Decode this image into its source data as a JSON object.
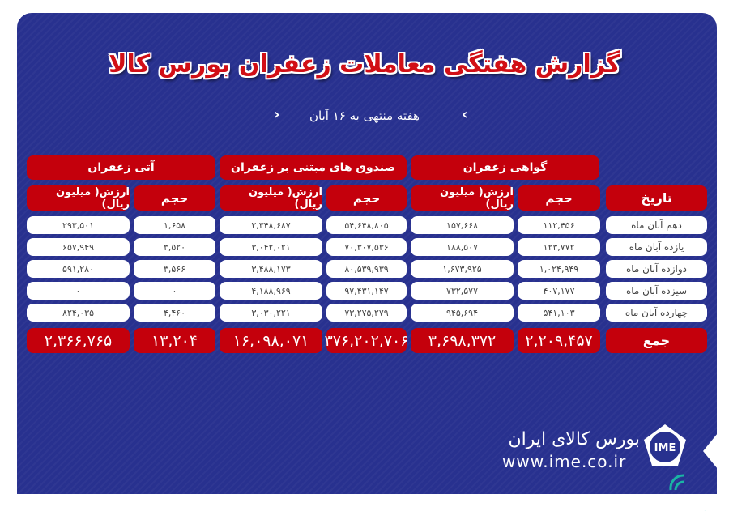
{
  "title": "گزارش هفتگی معاملات زعفران بورس کالا",
  "subtitle": "هفته منتهی به ۱۶ آبان",
  "groups": [
    "گواهی زعفران",
    "صندوق های مبتنی بر زعفران",
    "آتی زعفران"
  ],
  "date_header": "تاریخ",
  "volume_header": "حجم",
  "value_header": "ارزش( میلیون ریال)",
  "rows": [
    {
      "date": "دهم آبان ماه",
      "v": [
        "۱۱۲,۴۵۶",
        "۱۵۷,۶۶۸",
        "۵۴,۶۴۸,۸۰۵",
        "۲,۳۴۸,۶۸۷",
        "۱,۶۵۸",
        "۲۹۳,۵۰۱"
      ]
    },
    {
      "date": "یازده آبان ماه",
      "v": [
        "۱۲۳,۷۷۲",
        "۱۸۸,۵۰۷",
        "۷۰,۳۰۷,۵۳۶",
        "۳,۰۴۲,۰۲۱",
        "۳,۵۲۰",
        "۶۵۷,۹۴۹"
      ]
    },
    {
      "date": "دوازده آبان ماه",
      "v": [
        "۱,۰۲۴,۹۴۹",
        "۱,۶۷۳,۹۲۵",
        "۸۰,۵۳۹,۹۳۹",
        "۳,۴۸۸,۱۷۳",
        "۳,۵۶۶",
        "۵۹۱,۲۸۰"
      ]
    },
    {
      "date": "سیزده آبان ماه",
      "v": [
        "۴۰۷,۱۷۷",
        "۷۳۲,۵۷۷",
        "۹۷,۴۳۱,۱۴۷",
        "۴,۱۸۸,۹۶۹",
        "۰",
        "۰"
      ]
    },
    {
      "date": "چهارده آبان ماه",
      "v": [
        "۵۴۱,۱۰۳",
        "۹۴۵,۶۹۴",
        "۷۳,۲۷۵,۲۷۹",
        "۳,۰۳۰,۲۲۱",
        "۴,۴۶۰",
        "۸۲۴,۰۳۵"
      ]
    }
  ],
  "total": {
    "label": "جمع",
    "v": [
      "۲,۲۰۹,۴۵۷",
      "۳,۶۹۸,۳۷۲",
      "۳۷۶,۲۰۲,۷۰۶",
      "۱۶,۰۹۸,۰۷۱",
      "۱۳,۲۰۴",
      "۲,۳۶۶,۷۶۵"
    ]
  },
  "brand": {
    "name": "بورس کالای ایران",
    "url": "www.ime.co.ir",
    "logo_text": "IME",
    "corner_logo": "کالا خبر"
  },
  "colors": {
    "background": "#28318f",
    "accent": "#c4000c"
  }
}
